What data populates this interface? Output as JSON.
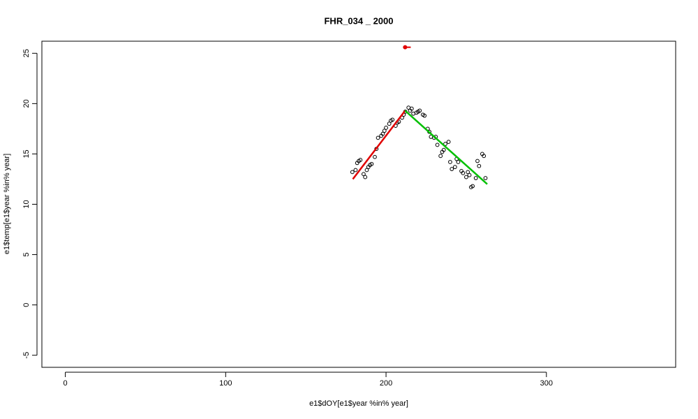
{
  "chart_data": {
    "type": "scatter",
    "title": "FHR_034 _ 2000",
    "x_label": "e1$dOY[e1$year %in% year]",
    "y_label": "e1$temp[e1$year %in% year]",
    "xlim": [
      -14.6,
      380.6
    ],
    "ylim": [
      -6.2,
      26.2
    ],
    "xticks": [
      0,
      100,
      200,
      300
    ],
    "yticks": [
      -5,
      0,
      5,
      10,
      15,
      20,
      25
    ],
    "grid": false,
    "series": [
      {
        "type": "points",
        "color": "#000000",
        "x": [
          179,
          181,
          182,
          183,
          184,
          186,
          187,
          188,
          189,
          190,
          191,
          193,
          194,
          195,
          197,
          198,
          199,
          200,
          202,
          203,
          204,
          206,
          207,
          208,
          210,
          211,
          212,
          214,
          215,
          216,
          217,
          219,
          220,
          221,
          223,
          224,
          226,
          227,
          228,
          230,
          231,
          232,
          234,
          235,
          236,
          237,
          239,
          240,
          241,
          243,
          244,
          245,
          247,
          248,
          250,
          251,
          252,
          253,
          254,
          256,
          257,
          258,
          260,
          261,
          262
        ],
        "values": [
          13.2,
          13.4,
          14.1,
          14.3,
          14.4,
          13.0,
          12.7,
          13.4,
          13.7,
          13.9,
          14.0,
          14.7,
          15.5,
          16.6,
          16.8,
          17.0,
          17.3,
          17.6,
          18.0,
          18.3,
          18.4,
          17.8,
          18.1,
          18.2,
          18.6,
          18.9,
          19.2,
          19.6,
          19.3,
          19.5,
          19.0,
          19.1,
          19.2,
          19.3,
          18.9,
          18.8,
          17.5,
          17.2,
          16.7,
          16.6,
          16.7,
          15.9,
          14.8,
          15.2,
          15.4,
          16.0,
          16.2,
          14.2,
          13.5,
          13.7,
          14.5,
          14.2,
          13.3,
          13.1,
          12.7,
          13.2,
          12.9,
          11.7,
          11.8,
          12.6,
          14.3,
          13.8,
          15.0,
          14.8,
          12.6
        ]
      },
      {
        "type": "line",
        "color": "#e00000",
        "x": [
          179.3,
          211.9
        ],
        "values": [
          12.5,
          19.3
        ]
      },
      {
        "type": "line",
        "color": "#00c000",
        "x": [
          211.9,
          263.1
        ],
        "values": [
          19.3,
          12.0
        ]
      },
      {
        "type": "interval",
        "color": "#e00000",
        "x": [
          211.9
        ],
        "values": [
          25.6
        ],
        "xlow": [
          210.6
        ],
        "xhigh": [
          215.4
        ]
      }
    ]
  }
}
